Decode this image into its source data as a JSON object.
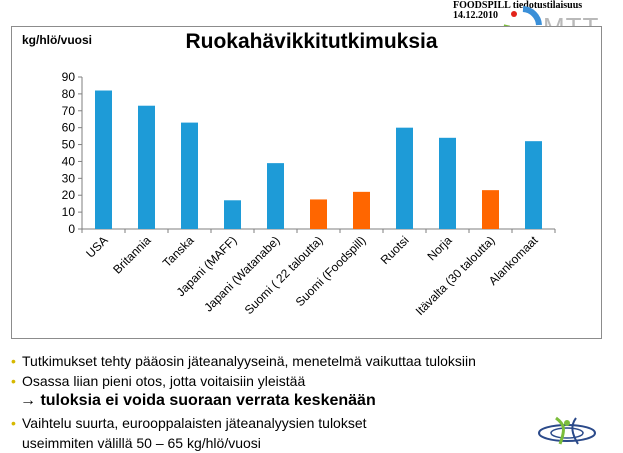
{
  "header": {
    "org": "FOODSPILL tiedotustilaisuus",
    "date": "14.12.2010"
  },
  "logo": {
    "text": "MTT"
  },
  "chart_data": {
    "type": "bar",
    "title": "Ruokahävikkitutkimuksia",
    "ylabel": "kg/hlö/vuosi",
    "xlabel": "",
    "ylim": [
      0,
      90
    ],
    "yticks": [
      0,
      10,
      20,
      30,
      40,
      50,
      60,
      70,
      80,
      90
    ],
    "grid": false,
    "legend": "none",
    "categories": [
      "USA",
      "Britannia",
      "Tanska",
      "Japani (MAFF)",
      "Japani (Watanabe)",
      "Suomi ( 22 taloutta)",
      "Suomi (Foodspill)",
      "Ruotsi",
      "Norja",
      "Itävalta (30 taloutta)",
      "Alankomaat"
    ],
    "values": [
      82,
      73,
      63,
      17,
      39,
      17.5,
      22,
      60,
      54,
      23,
      52
    ],
    "bar_colors": [
      "#1e9bd7",
      "#1e9bd7",
      "#1e9bd7",
      "#1e9bd7",
      "#1e9bd7",
      "#ff6600",
      "#ff6600",
      "#1e9bd7",
      "#1e9bd7",
      "#ff6600",
      "#1e9bd7"
    ]
  },
  "bullets": {
    "b1": "Tutkimukset tehty pääosin jäteanalyyseinä, menetelmä vaikuttaa tuloksiin",
    "b2": "Osassa liian pieni otos, jotta voitaisiin yleistää",
    "arrow": "→ tuloksia ei voida suoraan verrata keskenään",
    "b3_line1": "Vaihtelu suurta,  eurooppalaisten jäteanalyysien tulokset",
    "b3_line2": "useimmiten välillä 50 – 65 kg/hlö/vuosi"
  },
  "colors": {
    "bar_primary": "#1e9bd7",
    "bar_highlight": "#ff6600",
    "bullet": "#d6b800"
  }
}
